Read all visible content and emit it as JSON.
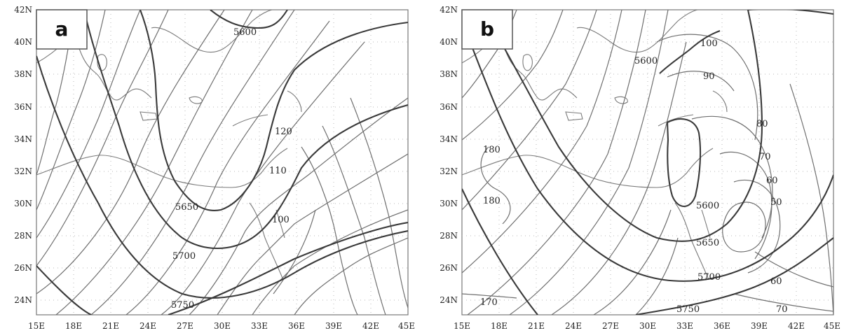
{
  "axes": {
    "x_ticks": [
      "15E",
      "18E",
      "21E",
      "24E",
      "27E",
      "30E",
      "33E",
      "36E",
      "39E",
      "42E",
      "45E"
    ],
    "y_ticks": [
      "42N",
      "40N",
      "38N",
      "36N",
      "34N",
      "32N",
      "30N",
      "28N",
      "26N",
      "24N"
    ]
  },
  "panels": [
    {
      "letter": "a",
      "height_labels": [
        "5600",
        "5650",
        "5700",
        "5750"
      ],
      "wind_labels": [
        "120",
        "110",
        "100"
      ]
    },
    {
      "letter": "b",
      "height_labels": [
        "5600",
        "5600",
        "5650",
        "5700",
        "5750"
      ],
      "wind_labels": [
        "100",
        "90",
        "80",
        "70",
        "60",
        "50",
        "60",
        "70",
        "180",
        "180",
        "170"
      ]
    }
  ],
  "colors": {
    "thick_contour": "#3a3a3a",
    "thin_contour": "#6f6f6f",
    "coastline": "#7a7a7a",
    "grid": "#b9b9b9"
  }
}
